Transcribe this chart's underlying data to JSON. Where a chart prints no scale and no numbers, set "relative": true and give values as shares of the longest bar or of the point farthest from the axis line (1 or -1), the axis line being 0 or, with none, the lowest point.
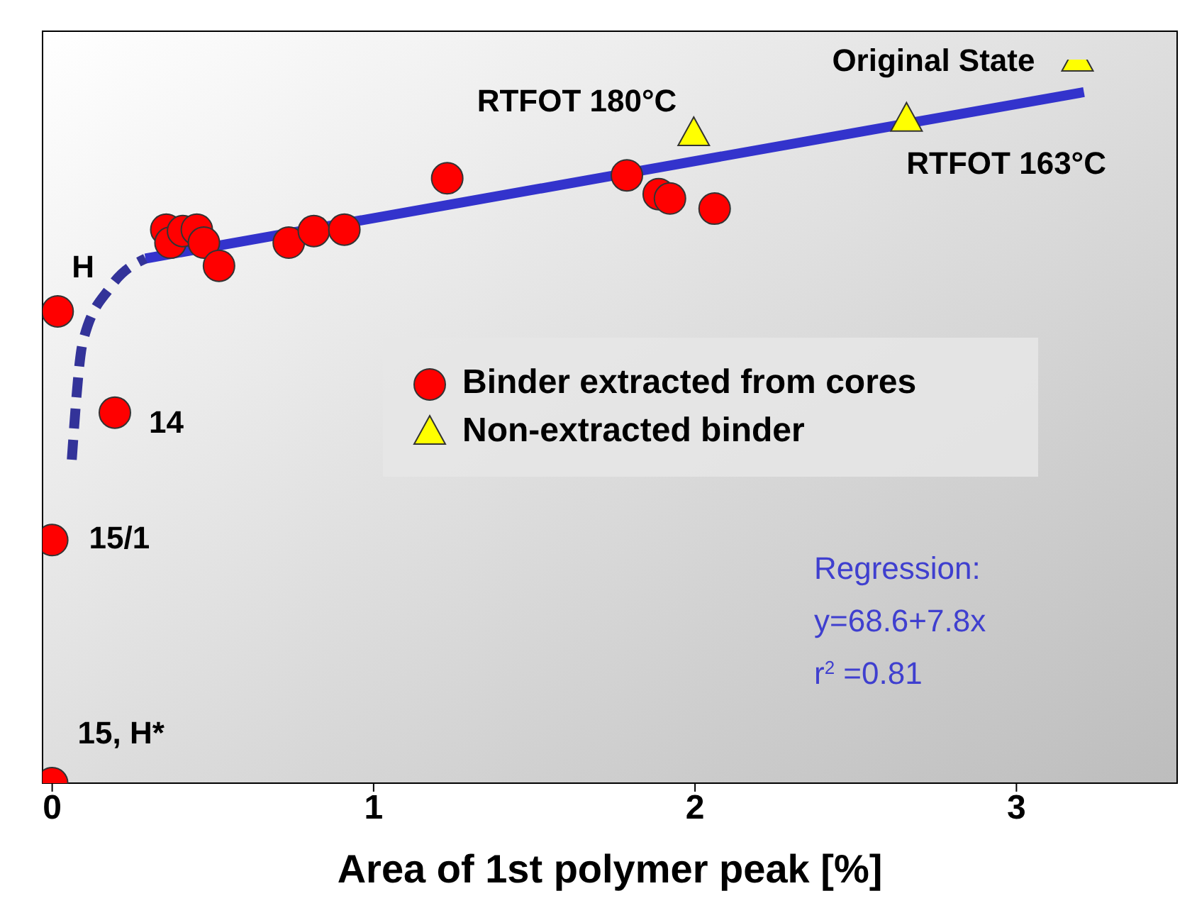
{
  "chart_data": {
    "type": "scatter",
    "relative": true,
    "xlabel": "Area of 1st polymer peak  [%]",
    "xlim": [
      -0.03,
      3.5
    ],
    "xticks": [
      0,
      1,
      2,
      3
    ],
    "grid": false,
    "legend": "center",
    "series": [
      {
        "name": "Binder extracted from cores",
        "marker": "circle",
        "color": "#ff0000",
        "x": [
          0,
          0,
          0.195,
          0.017,
          0.355,
          0.368,
          0.407,
          0.45,
          0.472,
          0.519,
          0.736,
          0.814,
          0.909,
          1.229,
          1.788,
          1.887,
          1.922,
          2.061
        ],
        "values": [
          0,
          0.336,
          0.512,
          0.652,
          0.765,
          0.747,
          0.763,
          0.765,
          0.747,
          0.715,
          0.747,
          0.763,
          0.765,
          0.836,
          0.84,
          0.814,
          0.808,
          0.794
        ]
      },
      {
        "name": "Non-extracted binder",
        "marker": "triangle",
        "color": "#ffff00",
        "x": [
          1.996,
          2.658,
          3.19
        ],
        "values": [
          0.897,
          0.917,
          1
        ]
      },
      {
        "type": "line",
        "marker": "none",
        "line_style": "solid",
        "color": "#3333cc",
        "x": [
          0.29,
          3.21
        ],
        "values": [
          0.725,
          0.955
        ]
      },
      {
        "type": "line",
        "marker": "none",
        "line_style": "dashed",
        "color": "#333399",
        "x": [
          0.061,
          0.095,
          0.182,
          0.29
        ],
        "values": [
          0.447,
          0.609,
          0.686,
          0.725
        ]
      }
    ],
    "annotations": [
      {
        "text": "15, H*",
        "x": 0,
        "y": 0
      },
      {
        "text": "15/1",
        "x": 0,
        "y": 0.336
      },
      {
        "text": "14",
        "x": 0.195,
        "y": 0.512
      },
      {
        "text": "H",
        "x": 0.017,
        "y": 0.652
      },
      {
        "text": "RTFOT 180°C",
        "x": 1.996,
        "y": 0.897
      },
      {
        "text": "RTFOT 163°C",
        "x": 2.658,
        "y": 0.917
      },
      {
        "text": "Original State",
        "x": 3.19,
        "y": 1
      },
      "Regression:\ny=68.6+7.8x\nr$^{2}$ =0.81"
    ]
  }
}
